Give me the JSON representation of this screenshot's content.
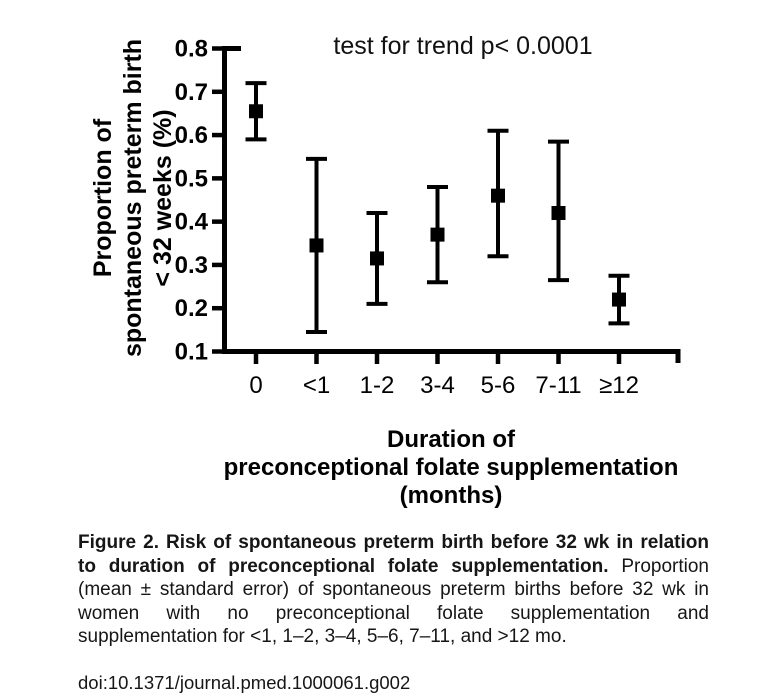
{
  "figure": {
    "annotation": "test for trend p< 0.0001",
    "y_axis_label_lines": [
      "Proportion of",
      "spontaneous preterm birth",
      "< 32 weeks (%)"
    ],
    "x_axis_label_lines": [
      "Duration of",
      "preconceptional folate supplementation",
      "(months)"
    ]
  },
  "caption": {
    "bold": "Figure 2. Risk of spontaneous preterm birth before 32 wk in relation to duration of preconceptional folate supplementation.",
    "body": " Proportion (mean ± standard error) of spontaneous preterm births before 32 wk in women with no preconceptional folate supplementation and supplementation for <1, 1–2, 3–4, 5–6, 7–11, and >12 mo.",
    "doi": "doi:10.1371/journal.pmed.1000061.g002"
  },
  "chart_data": {
    "type": "scatter",
    "subtype": "mean-with-error-bars",
    "title": "test for trend p< 0.0001",
    "xlabel": "Duration of preconceptional folate supplementation (months)",
    "ylabel": "Proportion of spontaneous preterm birth < 32 weeks (%)",
    "categories": [
      "0",
      "<1",
      "1-2",
      "3-4",
      "5-6",
      "7-11",
      "≥12"
    ],
    "series": [
      {
        "name": "Proportion (mean ± standard error)",
        "means": [
          0.655,
          0.345,
          0.315,
          0.37,
          0.46,
          0.42,
          0.22
        ],
        "upper": [
          0.72,
          0.545,
          0.42,
          0.48,
          0.61,
          0.585,
          0.275
        ],
        "lower": [
          0.59,
          0.145,
          0.21,
          0.26,
          0.32,
          0.265,
          0.165
        ]
      }
    ],
    "ylim": [
      0.1,
      0.8
    ],
    "yticks": [
      0.1,
      0.2,
      0.3,
      0.4,
      0.5,
      0.6,
      0.7,
      0.8
    ],
    "grid": false,
    "legend": "none",
    "marker": "filled-square",
    "color": "#000000"
  }
}
